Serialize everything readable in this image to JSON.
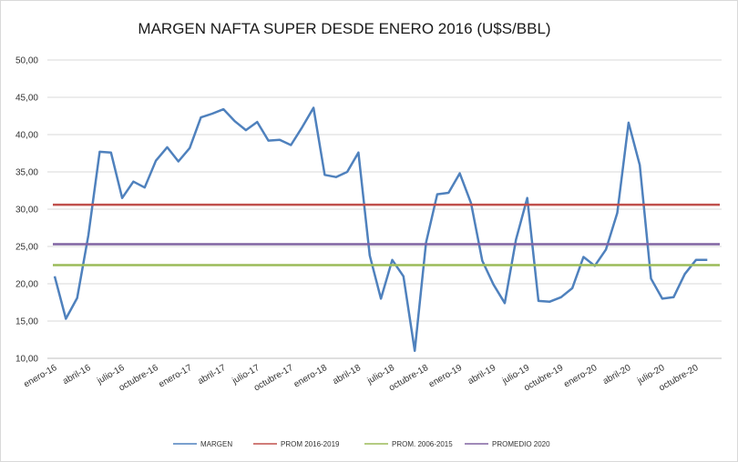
{
  "chart_data": {
    "type": "line",
    "title": "MARGEN NAFTA SUPER DESDE ENERO 2016 (U$S/BBL)",
    "xlabel": "",
    "ylabel": "",
    "ylim": [
      10,
      50
    ],
    "y_ticks": [
      "10,00",
      "15,00",
      "20,00",
      "25,00",
      "30,00",
      "35,00",
      "40,00",
      "45,00",
      "50,00"
    ],
    "x_ticks": [
      "enero-16",
      "abril-16",
      "julio-16",
      "octubre-16",
      "enero-17",
      "abril-17",
      "julio-17",
      "octubre-17",
      "enero-18",
      "abril-18",
      "julio-18",
      "octubre-18",
      "enero-19",
      "abril-19",
      "julio-19",
      "octubre-19",
      "enero-20",
      "abril-20",
      "julio-20",
      "octubre-20"
    ],
    "grid": true,
    "legend_position": "bottom",
    "series": [
      {
        "name": "MARGEN",
        "color": "#4f81bd",
        "values": [
          21.0,
          15.3,
          18.1,
          26.5,
          37.7,
          37.6,
          31.5,
          33.7,
          32.9,
          36.5,
          38.3,
          36.4,
          38.2,
          42.3,
          42.8,
          43.4,
          41.8,
          40.6,
          41.7,
          39.2,
          39.3,
          38.6,
          41.0,
          43.6,
          34.6,
          34.3,
          35.0,
          37.6,
          23.8,
          18.0,
          23.2,
          21.0,
          11.0,
          25.5,
          32.0,
          32.2,
          34.8,
          30.8,
          23.1,
          19.9,
          17.4,
          25.9,
          31.5,
          17.7,
          17.6,
          18.2,
          19.4,
          23.6,
          22.4,
          24.6,
          29.5,
          41.6,
          35.9,
          20.7,
          18.0,
          18.2,
          21.3,
          23.2,
          23.2
        ]
      },
      {
        "name": "PROM 2016-2019",
        "color": "#c0504d",
        "values": [
          30.6
        ]
      },
      {
        "name": "PROM. 2006-2015",
        "color": "#9bbb59",
        "values": [
          22.5
        ]
      },
      {
        "name": "PROMEDIO 2020",
        "color": "#8064a2",
        "values": [
          25.3
        ]
      }
    ]
  }
}
